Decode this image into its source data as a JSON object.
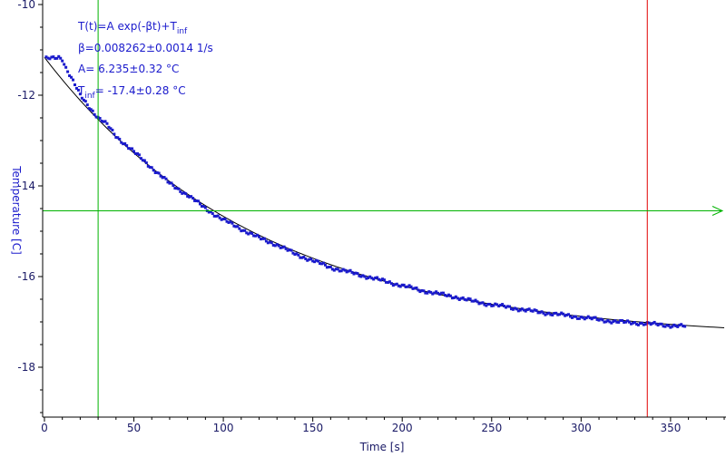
{
  "chart_data": {
    "type": "scatter",
    "xlabel": "Time [s]",
    "ylabel": "Temperature [C]",
    "xlim": [
      -1,
      381
    ],
    "ylim": [
      -19.1,
      -9.9
    ],
    "x_ticks": [
      0,
      50,
      100,
      150,
      200,
      250,
      300,
      350
    ],
    "y_ticks": [
      -10,
      -12,
      -14,
      -16,
      -18
    ],
    "grid": false,
    "fit": {
      "A": 6.235,
      "beta": 0.008262,
      "T_inf": -17.4,
      "x_range": [
        0,
        381
      ]
    },
    "annotations": {
      "formula": {
        "text": "T(t)=A exp(-βt)+T",
        "sub": "inf"
      },
      "beta": "β=0.008262±0.0014 1/s",
      "A": "A= 6.235±0.32 °C",
      "tinf": {
        "pre": "T",
        "sub": "inf",
        "post": "= -17.4±0.28 °C"
      }
    },
    "cursors": {
      "vertical_green_x": 30,
      "vertical_red_x": 337,
      "horizontal_green_y": -14.55
    },
    "data_anchors": [
      [
        1,
        -11.2
      ],
      [
        4,
        -11.18
      ],
      [
        8,
        -11.15
      ],
      [
        10,
        -11.2
      ],
      [
        12,
        -11.4
      ],
      [
        20,
        -12.0
      ],
      [
        30,
        -12.5
      ],
      [
        35,
        -12.65
      ],
      [
        40,
        -12.9
      ],
      [
        50,
        -13.25
      ],
      [
        60,
        -13.6
      ],
      [
        70,
        -13.95
      ],
      [
        80,
        -14.2
      ],
      [
        90,
        -14.5
      ],
      [
        100,
        -14.75
      ],
      [
        110,
        -14.95
      ],
      [
        120,
        -15.15
      ],
      [
        130,
        -15.3
      ],
      [
        140,
        -15.5
      ],
      [
        150,
        -15.65
      ],
      [
        160,
        -15.8
      ],
      [
        170,
        -15.9
      ],
      [
        180,
        -16.0
      ],
      [
        190,
        -16.1
      ],
      [
        200,
        -16.2
      ],
      [
        210,
        -16.3
      ],
      [
        220,
        -16.38
      ],
      [
        230,
        -16.45
      ],
      [
        240,
        -16.55
      ],
      [
        250,
        -16.62
      ],
      [
        260,
        -16.68
      ],
      [
        270,
        -16.75
      ],
      [
        280,
        -16.8
      ],
      [
        290,
        -16.85
      ],
      [
        300,
        -16.9
      ],
      [
        310,
        -16.95
      ],
      [
        320,
        -17.0
      ],
      [
        330,
        -17.02
      ],
      [
        340,
        -17.05
      ],
      [
        350,
        -17.08
      ],
      [
        358,
        -17.1
      ]
    ],
    "colors": {
      "points": "#1a1acc",
      "fit_line": "#000000",
      "green_cursor": "#00b300",
      "red_cursor": "#e00000",
      "axis": "#000000",
      "tick_label": "#1a1a66",
      "ylabel": "#1a1acc"
    }
  }
}
